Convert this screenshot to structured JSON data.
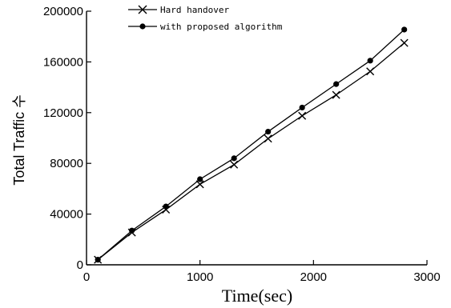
{
  "chart_data": {
    "type": "line",
    "title": "",
    "xlabel": "Time(sec)",
    "ylabel": "Total Traffic 수",
    "xlim": [
      0,
      3000
    ],
    "ylim": [
      0,
      200000
    ],
    "xticks": [
      0,
      1000,
      2000,
      3000
    ],
    "yticks": [
      0,
      40000,
      80000,
      120000,
      160000,
      200000
    ],
    "grid": false,
    "legend_position": "top-left",
    "series": [
      {
        "name": "Hard handover",
        "marker": "x",
        "x": [
          100,
          400,
          700,
          1000,
          1300,
          1600,
          1900,
          2200,
          2500,
          2800
        ],
        "y": [
          4000,
          25500,
          43500,
          63500,
          79000,
          99500,
          117500,
          134000,
          152500,
          175000
        ]
      },
      {
        "name": "with proposed algorithm",
        "marker": "dot",
        "x": [
          100,
          400,
          700,
          1000,
          1300,
          1600,
          1900,
          2200,
          2500,
          2800
        ],
        "y": [
          4000,
          27000,
          46000,
          67500,
          84000,
          105000,
          124000,
          142500,
          161000,
          185500
        ]
      }
    ]
  }
}
